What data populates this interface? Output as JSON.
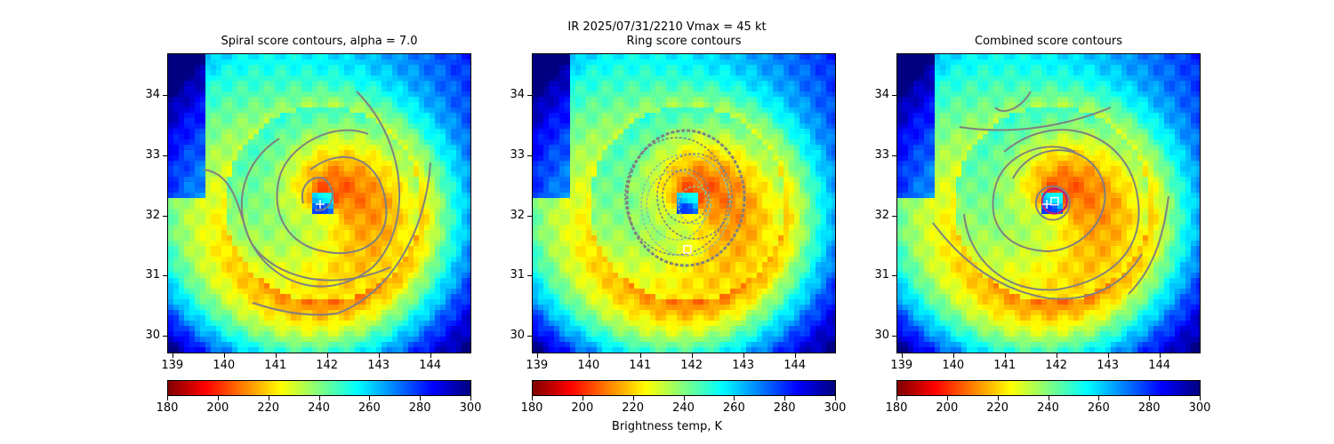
{
  "suptitle_line1": "IR  2025/07/31/2210    Vmax = 45 kt",
  "colorbar_label": "Brightness temp, K",
  "colorbar_ticks": [
    "180",
    "200",
    "220",
    "240",
    "260",
    "280",
    "300"
  ],
  "colorbar_range": [
    180,
    300
  ],
  "colormap": "jet_r",
  "chart_data": [
    {
      "type": "heatmap",
      "title": "Spiral score contours, alpha =  7.0",
      "xlim": [
        138.9,
        144.8
      ],
      "ylim": [
        29.7,
        34.7
      ],
      "xticks": [
        "139",
        "140",
        "141",
        "142",
        "143",
        "144"
      ],
      "yticks": [
        "30",
        "31",
        "32",
        "33",
        "34"
      ],
      "center_marker": {
        "symbol": "+",
        "x": 141.85,
        "y": 32.2
      },
      "contour_color": "#808080"
    },
    {
      "type": "heatmap",
      "title": "Ring score contours",
      "xlim": [
        138.9,
        144.8
      ],
      "ylim": [
        29.7,
        34.7
      ],
      "xticks": [
        "139",
        "140",
        "141",
        "142",
        "143",
        "144"
      ],
      "yticks": [
        "30",
        "31",
        "32",
        "33",
        "34"
      ],
      "center_marker": {
        "symbol": "square",
        "x": 141.9,
        "y": 31.45
      },
      "contour_color": "#808080"
    },
    {
      "type": "heatmap",
      "title": "Combined score contours",
      "xlim": [
        138.9,
        144.8
      ],
      "ylim": [
        29.7,
        34.7
      ],
      "xticks": [
        "139",
        "140",
        "141",
        "142",
        "143",
        "144"
      ],
      "yticks": [
        "30",
        "31",
        "32",
        "33",
        "34"
      ],
      "center_marker": {
        "symbol": "square",
        "x": 141.95,
        "y": 32.25
      },
      "secondary_marker": {
        "symbol": "+",
        "x": 141.8,
        "y": 32.2
      },
      "contour_color": "#808080",
      "ring_color": "#c0187a"
    }
  ]
}
